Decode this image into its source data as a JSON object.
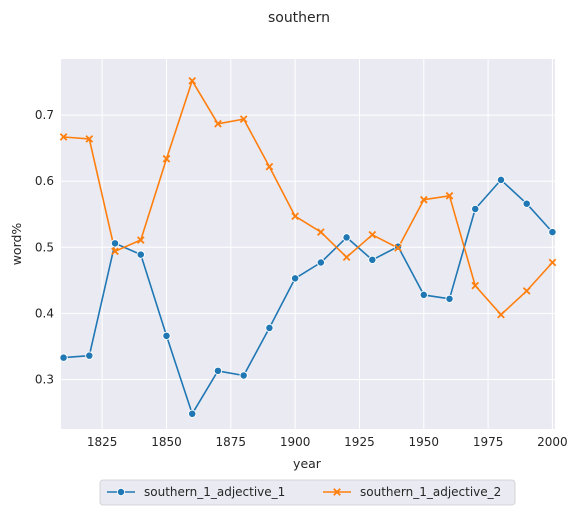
{
  "chart_data": {
    "type": "line",
    "title": "southern",
    "xlabel": "year",
    "ylabel": "word%",
    "xlim": [
      1809,
      2001
    ],
    "ylim": [
      0.225,
      0.785
    ],
    "x_ticks": [
      1825,
      1850,
      1875,
      1900,
      1925,
      1950,
      1975,
      2000
    ],
    "y_ticks": [
      0.3,
      0.4,
      0.5,
      0.6,
      0.7
    ],
    "grid": true,
    "legend_position": "bottom-center",
    "x": [
      1810,
      1820,
      1830,
      1840,
      1850,
      1860,
      1870,
      1880,
      1890,
      1900,
      1910,
      1920,
      1930,
      1940,
      1950,
      1960,
      1970,
      1980,
      1990,
      2000
    ],
    "series": [
      {
        "name": "southern_1_adjective_1",
        "color": "#1f77b4",
        "marker": "circle",
        "values": [
          0.333,
          0.336,
          0.506,
          0.489,
          0.366,
          0.248,
          0.313,
          0.306,
          0.378,
          0.453,
          0.477,
          0.515,
          0.481,
          0.501,
          0.428,
          0.422,
          0.558,
          0.602,
          0.566,
          0.523
        ]
      },
      {
        "name": "southern_1_adjective_2",
        "color": "#ff7f0e",
        "marker": "x",
        "values": [
          0.667,
          0.664,
          0.494,
          0.511,
          0.634,
          0.752,
          0.687,
          0.694,
          0.622,
          0.547,
          0.523,
          0.485,
          0.519,
          0.499,
          0.572,
          0.578,
          0.442,
          0.398,
          0.434,
          0.477
        ]
      }
    ]
  }
}
